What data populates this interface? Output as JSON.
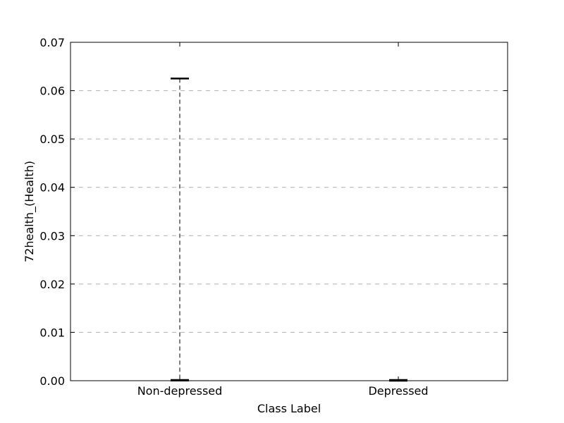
{
  "chart_data": {
    "type": "box",
    "xlabel": "Class Label",
    "ylabel": "72health_(Health)",
    "categories": [
      "Non-depressed",
      "Depressed"
    ],
    "ylim": [
      0,
      0.07
    ],
    "yticks": [
      "0.00",
      "0.01",
      "0.02",
      "0.03",
      "0.04",
      "0.05",
      "0.06",
      "0.07"
    ],
    "grid": "y-dashed",
    "boxes": [
      {
        "category": "Non-depressed",
        "min": 0.0,
        "q1": 0.0,
        "median": 0.0,
        "q3": 0.0,
        "max": 0.0625
      },
      {
        "category": "Depressed",
        "min": 0.0,
        "q1": 0.0,
        "median": 0.0,
        "q3": 0.0,
        "max": 0.0
      }
    ],
    "colors": {
      "axis": "#000000",
      "grid": "#b0b0b0",
      "whisker": "#555555",
      "cap": "#000000"
    }
  }
}
